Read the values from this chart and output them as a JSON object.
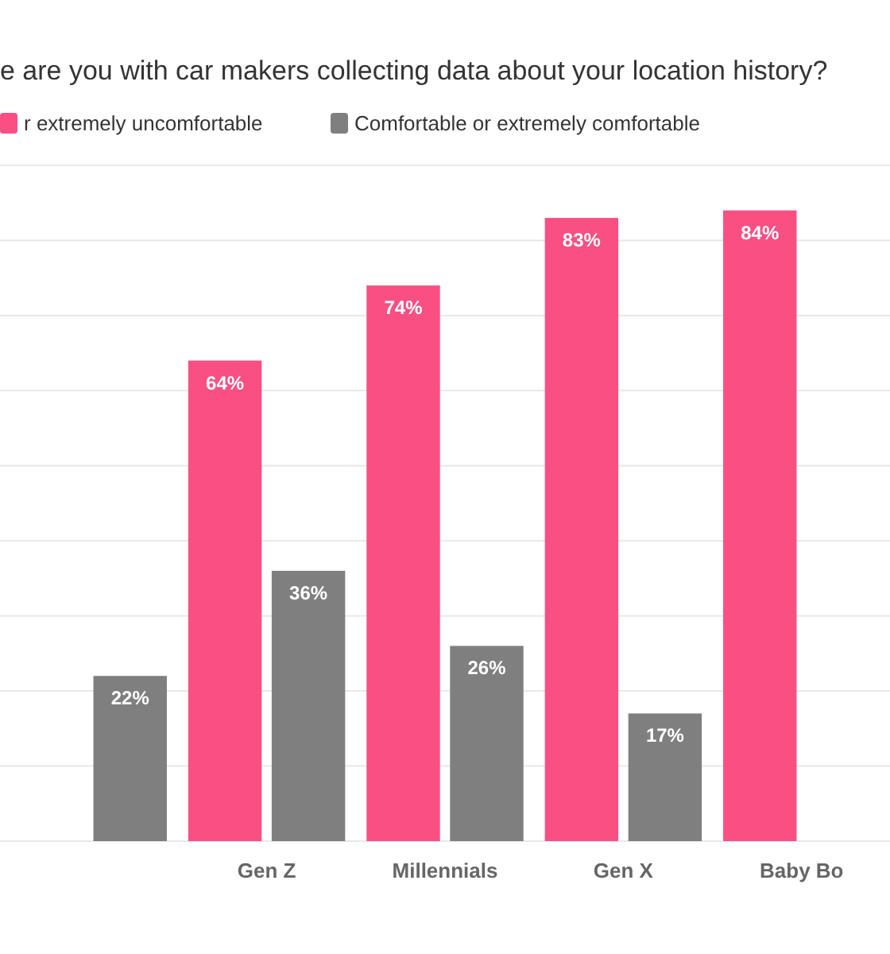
{
  "chart_data": {
    "type": "bar",
    "title": "e are you with car makers collecting data about your location history?",
    "categories": [
      null,
      "Gen Z",
      "Millennials",
      "Gen X",
      "Baby Bo"
    ],
    "series": [
      {
        "name": "r extremely uncomfortable",
        "color": "#f94f82",
        "values": [
          null,
          64,
          74,
          83,
          84
        ],
        "value_labels": [
          null,
          "64%",
          "74%",
          "83%",
          "84%"
        ]
      },
      {
        "name": "Comfortable or extremely comfortable",
        "color": "#7f7f7f",
        "values": [
          22,
          36,
          26,
          17,
          null
        ],
        "value_labels": [
          "22%",
          "36%",
          "26%",
          "17%",
          null
        ]
      }
    ],
    "ylim": [
      0,
      90
    ],
    "yticks": [
      {
        "value": 0,
        "label": null
      },
      {
        "value": 10,
        "label": null
      },
      {
        "value": 20,
        "label": null
      },
      {
        "value": 30,
        "label": null
      },
      {
        "value": 40,
        "label": null
      },
      {
        "value": 50,
        "label": null
      },
      {
        "value": 60,
        "label": null
      },
      {
        "value": 70,
        "label": null
      },
      {
        "value": 80,
        "label": null
      },
      {
        "value": 90,
        "label": null
      }
    ],
    "tick_labels": "x",
    "grid": "y",
    "legend": "top left"
  }
}
